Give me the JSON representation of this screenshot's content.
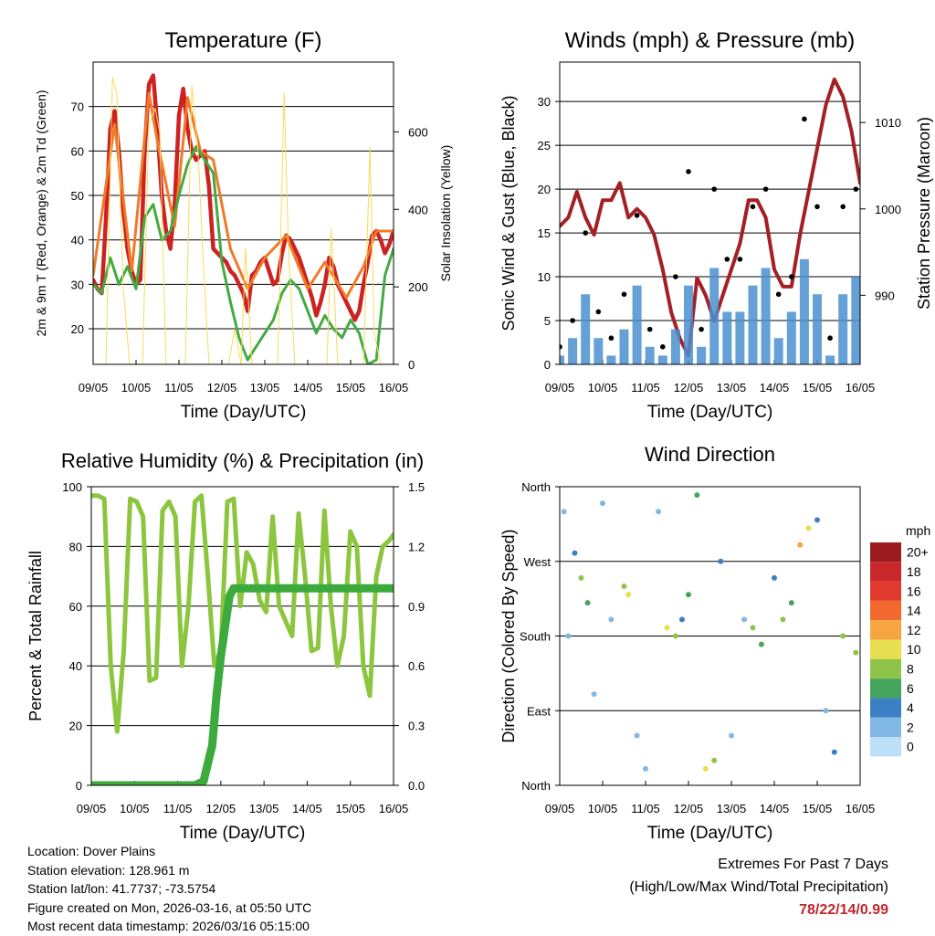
{
  "chart_data": [
    {
      "type": "line",
      "id": "temperature",
      "title": "Temperature (F)",
      "xlabel": "Time (Day/UTC)",
      "ylabel": "2m & 9m T (Red, Orange) & 2m Td (Green)",
      "y2label": "Solar Insolation (Yellow)",
      "x_ticks": [
        "09/05",
        "10/05",
        "11/05",
        "12/05",
        "13/05",
        "14/05",
        "15/05",
        "16/05"
      ],
      "xlim": [
        0,
        7
      ],
      "ylim": [
        12,
        80
      ],
      "y_ticks": [
        20,
        30,
        40,
        50,
        60,
        70
      ],
      "y2lim": [
        0,
        780
      ],
      "y2_ticks": [
        0,
        200,
        400,
        600
      ],
      "series": [
        {
          "name": "2m T",
          "color": "#cc2222",
          "x": [
            0,
            0.1,
            0.2,
            0.3,
            0.4,
            0.5,
            0.6,
            0.7,
            0.8,
            0.9,
            1.0,
            1.1,
            1.2,
            1.3,
            1.4,
            1.5,
            1.6,
            1.7,
            1.8,
            1.9,
            2.0,
            2.1,
            2.2,
            2.3,
            2.4,
            2.5,
            2.6,
            2.7,
            2.8,
            2.9,
            3.0,
            3.1,
            3.2,
            3.3,
            3.4,
            3.5,
            3.6,
            3.7,
            3.8,
            3.9,
            4.0,
            4.1,
            4.2,
            4.3,
            4.4,
            4.5,
            4.6,
            4.7,
            4.8,
            4.9,
            5.0,
            5.1,
            5.2,
            5.3,
            5.4,
            5.5,
            5.6,
            5.7,
            5.8,
            5.9,
            6.0,
            6.1,
            6.2,
            6.3,
            6.4,
            6.5,
            6.6,
            6.7,
            6.8,
            6.9,
            7.0
          ],
          "values": [
            31,
            29,
            28,
            45,
            65,
            69,
            60,
            47,
            38,
            33,
            30,
            31,
            60,
            75,
            77,
            65,
            50,
            42,
            38,
            48,
            68,
            74,
            65,
            60,
            58,
            59,
            60,
            52,
            38,
            37,
            36,
            35,
            33,
            32,
            30,
            28,
            24,
            32,
            33,
            35,
            36,
            33,
            30,
            31,
            37,
            41,
            40,
            38,
            36,
            33,
            30,
            27,
            23,
            26,
            30,
            36,
            34,
            30,
            28,
            26,
            24,
            22,
            24,
            30,
            35,
            41,
            42,
            40,
            37,
            39,
            42
          ]
        },
        {
          "name": "9m T",
          "color": "#f07a28",
          "x": [
            0,
            0.5,
            0.9,
            1.3,
            1.5,
            1.9,
            2.2,
            2.5,
            2.8,
            3.2,
            3.6,
            4.0,
            4.5,
            5.0,
            5.4,
            5.9,
            6.3,
            6.6,
            7.0
          ],
          "values": [
            32,
            66,
            33,
            73,
            62,
            43,
            72,
            60,
            58,
            38,
            29,
            36,
            41,
            29,
            35,
            27,
            34,
            42,
            42
          ]
        },
        {
          "name": "2m Td",
          "color": "#44aa44",
          "x": [
            0,
            0.2,
            0.4,
            0.6,
            0.8,
            1.0,
            1.2,
            1.4,
            1.6,
            1.8,
            2.0,
            2.2,
            2.4,
            2.6,
            2.8,
            3.0,
            3.2,
            3.4,
            3.6,
            3.8,
            4.0,
            4.2,
            4.4,
            4.6,
            4.8,
            5.0,
            5.2,
            5.4,
            5.6,
            5.8,
            6.0,
            6.2,
            6.4,
            6.6,
            6.8,
            7.0
          ],
          "values": [
            30,
            28,
            36,
            30,
            34,
            29,
            45,
            48,
            40,
            42,
            50,
            57,
            61,
            58,
            55,
            35,
            26,
            18,
            13,
            16,
            19,
            22,
            28,
            31,
            29,
            24,
            19,
            23,
            20,
            18,
            22,
            19,
            12,
            13,
            32,
            38
          ]
        },
        {
          "name": "Solar Insolation",
          "color": "#f5dc5a",
          "axis": "y2",
          "x": [
            0,
            0.15,
            0.3,
            0.45,
            0.55,
            0.7,
            0.85,
            1.0,
            1.15,
            1.3,
            1.45,
            1.55,
            1.7,
            1.85,
            2.0,
            2.15,
            2.3,
            2.45,
            2.55,
            2.7,
            2.85,
            3.0,
            3.15,
            3.3,
            3.45,
            3.55,
            3.7,
            3.85,
            4.0,
            4.15,
            4.3,
            4.45,
            4.55,
            4.7,
            4.85,
            5.0,
            5.15,
            5.3,
            5.45,
            5.55,
            5.7,
            5.85,
            6.0,
            6.15,
            6.3,
            6.45,
            6.55,
            6.7,
            6.85,
            7.0
          ],
          "values": [
            0,
            0,
            0,
            740,
            700,
            200,
            0,
            0,
            0,
            620,
            660,
            600,
            0,
            0,
            0,
            0,
            720,
            540,
            300,
            0,
            0,
            0,
            0,
            90,
            0,
            300,
            0,
            0,
            0,
            0,
            0,
            700,
            300,
            0,
            0,
            0,
            0,
            0,
            0,
            350,
            0,
            0,
            0,
            0,
            0,
            560,
            80,
            0,
            0,
            0
          ]
        }
      ]
    },
    {
      "type": "scatter",
      "id": "winds",
      "title": "Winds (mph) & Pressure (mb)",
      "xlabel": "Time (Day/UTC)",
      "ylabel": "Sonic Wind & Gust (Blue, Black)",
      "y2label": "Station Pressure (Maroon)",
      "x_ticks": [
        "09/05",
        "10/05",
        "11/05",
        "12/05",
        "13/05",
        "14/05",
        "15/05",
        "16/05"
      ],
      "xlim": [
        0,
        7
      ],
      "ylim": [
        0,
        34.5
      ],
      "y_ticks": [
        0,
        5,
        10,
        15,
        20,
        25,
        30
      ],
      "y2lim": [
        982,
        1017
      ],
      "y2_ticks": [
        990,
        1000,
        1010
      ],
      "series": [
        {
          "name": "Pressure",
          "color": "#a32024",
          "axis": "y2",
          "x": [
            0,
            0.2,
            0.4,
            0.6,
            0.8,
            1.0,
            1.2,
            1.4,
            1.6,
            1.8,
            2.0,
            2.2,
            2.4,
            2.6,
            2.8,
            3.0,
            3.2,
            3.4,
            3.6,
            3.8,
            4.0,
            4.2,
            4.4,
            4.6,
            4.8,
            5.0,
            5.2,
            5.4,
            5.6,
            5.8,
            6.0,
            6.2,
            6.4,
            6.6,
            6.8,
            7.0
          ],
          "values": [
            998,
            999,
            1002,
            999,
            997,
            1001,
            1001,
            1003,
            999,
            1000,
            999,
            997,
            993,
            988,
            985,
            983,
            992,
            990,
            987,
            990,
            993,
            996,
            1001,
            1001,
            999,
            993,
            991,
            991,
            997,
            1002,
            1007,
            1012,
            1015,
            1013,
            1009,
            1003
          ]
        },
        {
          "name": "Sonic Wind",
          "color": "#4a90d0",
          "x": [
            0,
            0.3,
            0.6,
            0.9,
            1.2,
            1.5,
            1.8,
            2.1,
            2.4,
            2.7,
            3.0,
            3.3,
            3.6,
            3.9,
            4.2,
            4.5,
            4.8,
            5.1,
            5.4,
            5.7,
            6.0,
            6.3,
            6.6,
            6.9
          ],
          "values": [
            1,
            3,
            8,
            3,
            1,
            4,
            9,
            2,
            1,
            4,
            9,
            2,
            11,
            6,
            6,
            9,
            11,
            3,
            6,
            12,
            8,
            1,
            8,
            10
          ]
        },
        {
          "name": "Gust",
          "color": "#000000",
          "x": [
            0,
            0.3,
            0.6,
            0.9,
            1.2,
            1.5,
            1.8,
            2.1,
            2.4,
            2.7,
            3.0,
            3.3,
            3.6,
            3.9,
            4.2,
            4.5,
            4.8,
            5.1,
            5.4,
            5.7,
            6.0,
            6.3,
            6.6,
            6.9
          ],
          "values": [
            2,
            5,
            15,
            6,
            3,
            8,
            17,
            4,
            2,
            10,
            22,
            4,
            20,
            12,
            12,
            18,
            20,
            8,
            10,
            28,
            18,
            3,
            18,
            20
          ]
        }
      ]
    },
    {
      "type": "line",
      "id": "humidity",
      "title": "Relative Humidity (%) & Precipitation (in)",
      "xlabel": "Time (Day/UTC)",
      "ylabel": "Percent & Total Rainfall",
      "x_ticks": [
        "09/05",
        "10/05",
        "11/05",
        "12/05",
        "13/05",
        "14/05",
        "15/05",
        "16/05"
      ],
      "xlim": [
        0,
        7
      ],
      "ylim": [
        0,
        100
      ],
      "y_ticks": [
        0,
        20,
        40,
        60,
        80,
        100
      ],
      "y2lim": [
        0,
        1.5
      ],
      "y2_ticks": [
        "0.0",
        "0.3",
        "0.6",
        "0.9",
        "1.2",
        "1.5"
      ],
      "series": [
        {
          "name": "Relative Humidity",
          "color": "#8cc63f",
          "x": [
            0,
            0.15,
            0.3,
            0.45,
            0.6,
            0.75,
            0.9,
            1.05,
            1.2,
            1.35,
            1.5,
            1.65,
            1.8,
            1.95,
            2.1,
            2.25,
            2.4,
            2.55,
            2.7,
            2.85,
            3.0,
            3.15,
            3.3,
            3.45,
            3.6,
            3.75,
            3.9,
            4.05,
            4.2,
            4.35,
            4.5,
            4.65,
            4.8,
            4.95,
            5.1,
            5.25,
            5.4,
            5.55,
            5.7,
            5.85,
            6.0,
            6.15,
            6.3,
            6.45,
            6.6,
            6.75,
            6.9,
            7.0
          ],
          "values": [
            97,
            97,
            96,
            40,
            18,
            45,
            96,
            95,
            90,
            35,
            36,
            92,
            95,
            90,
            40,
            60,
            95,
            97,
            70,
            40,
            45,
            95,
            96,
            60,
            78,
            74,
            62,
            58,
            90,
            60,
            55,
            50,
            91,
            70,
            45,
            46,
            92,
            60,
            40,
            50,
            85,
            80,
            40,
            30,
            70,
            80,
            82,
            84
          ]
        },
        {
          "name": "Total Precipitation",
          "color": "#3caa3c",
          "axis": "y2",
          "x": [
            0,
            0.5,
            1.0,
            1.5,
            2.0,
            2.4,
            2.6,
            2.8,
            2.9,
            3.0,
            3.1,
            3.2,
            3.3,
            3.5,
            4.0,
            4.5,
            5.0,
            5.5,
            6.0,
            6.5,
            7.0
          ],
          "values": [
            0,
            0,
            0,
            0,
            0,
            0,
            0.02,
            0.2,
            0.45,
            0.65,
            0.8,
            0.95,
            0.99,
            0.99,
            0.99,
            0.99,
            0.99,
            0.99,
            0.99,
            0.99,
            0.99
          ]
        }
      ]
    },
    {
      "type": "scatter",
      "id": "direction",
      "title": "Wind Direction",
      "xlabel": "Time (Day/UTC)",
      "ylabel": "Direction (Colored By Speed)",
      "x_ticks": [
        "09/05",
        "10/05",
        "11/05",
        "12/05",
        "13/05",
        "14/05",
        "15/05",
        "16/05"
      ],
      "xlim": [
        0,
        7
      ],
      "ylim": [
        0,
        360
      ],
      "y_ticks": [
        {
          "value": 0,
          "label": "North"
        },
        {
          "value": 90,
          "label": "East"
        },
        {
          "value": 180,
          "label": "South"
        },
        {
          "value": 270,
          "label": "West"
        },
        {
          "value": 360,
          "label": "North"
        }
      ],
      "legend": {
        "title": "mph",
        "placement": "right",
        "entries": [
          {
            "label": "20+",
            "color": "#9b1b1f"
          },
          {
            "label": "18",
            "color": "#c8272b"
          },
          {
            "label": "16",
            "color": "#e23b2e"
          },
          {
            "label": "14",
            "color": "#f2692d"
          },
          {
            "label": "12",
            "color": "#f7a541"
          },
          {
            "label": "10",
            "color": "#e7df50"
          },
          {
            "label": "8",
            "color": "#8fc44a"
          },
          {
            "label": "6",
            "color": "#46a55d"
          },
          {
            "label": "4",
            "color": "#3c7fc2"
          },
          {
            "label": "2",
            "color": "#82b8e6"
          },
          {
            "label": "0",
            "color": "#bde0f7"
          }
        ]
      },
      "series": [
        {
          "name": "Direction",
          "x": [
            0.1,
            0.2,
            0.35,
            0.5,
            0.65,
            0.8,
            1.0,
            1.2,
            1.5,
            1.6,
            1.8,
            2.0,
            2.3,
            2.5,
            2.7,
            2.85,
            3.0,
            3.2,
            3.4,
            3.6,
            3.75,
            4.0,
            4.3,
            4.5,
            4.7,
            5.0,
            5.2,
            5.4,
            5.6,
            5.8,
            6.0,
            6.2,
            6.4,
            6.6,
            6.9
          ],
          "values": [
            330,
            180,
            280,
            250,
            220,
            110,
            340,
            200,
            240,
            230,
            60,
            20,
            330,
            190,
            180,
            200,
            230,
            350,
            20,
            30,
            270,
            60,
            200,
            190,
            170,
            250,
            200,
            220,
            290,
            310,
            320,
            90,
            40,
            180,
            160
          ],
          "speed": [
            1,
            2,
            4,
            8,
            6,
            2,
            1,
            2,
            8,
            10,
            1,
            1,
            2,
            10,
            8,
            4,
            6,
            6,
            10,
            8,
            4,
            1,
            2,
            8,
            6,
            4,
            8,
            6,
            12,
            10,
            4,
            2,
            4,
            8,
            8
          ]
        }
      ]
    }
  ],
  "info": {
    "location": "Location: Dover Plains",
    "elevation": "Station elevation: 128.961 m",
    "latlon": "Station lat/lon: 41.7737; -73.5754",
    "created": "Figure created on Mon, 2026-03-16, at 05:50 UTC",
    "recent": "Most recent data timestamp: 2026/03/16 05:15:00"
  },
  "extremes": {
    "title": "Extremes For Past 7 Days",
    "subtitle": "(High/Low/Max Wind/Total Precipitation)",
    "values": "78/22/14/0.99"
  }
}
